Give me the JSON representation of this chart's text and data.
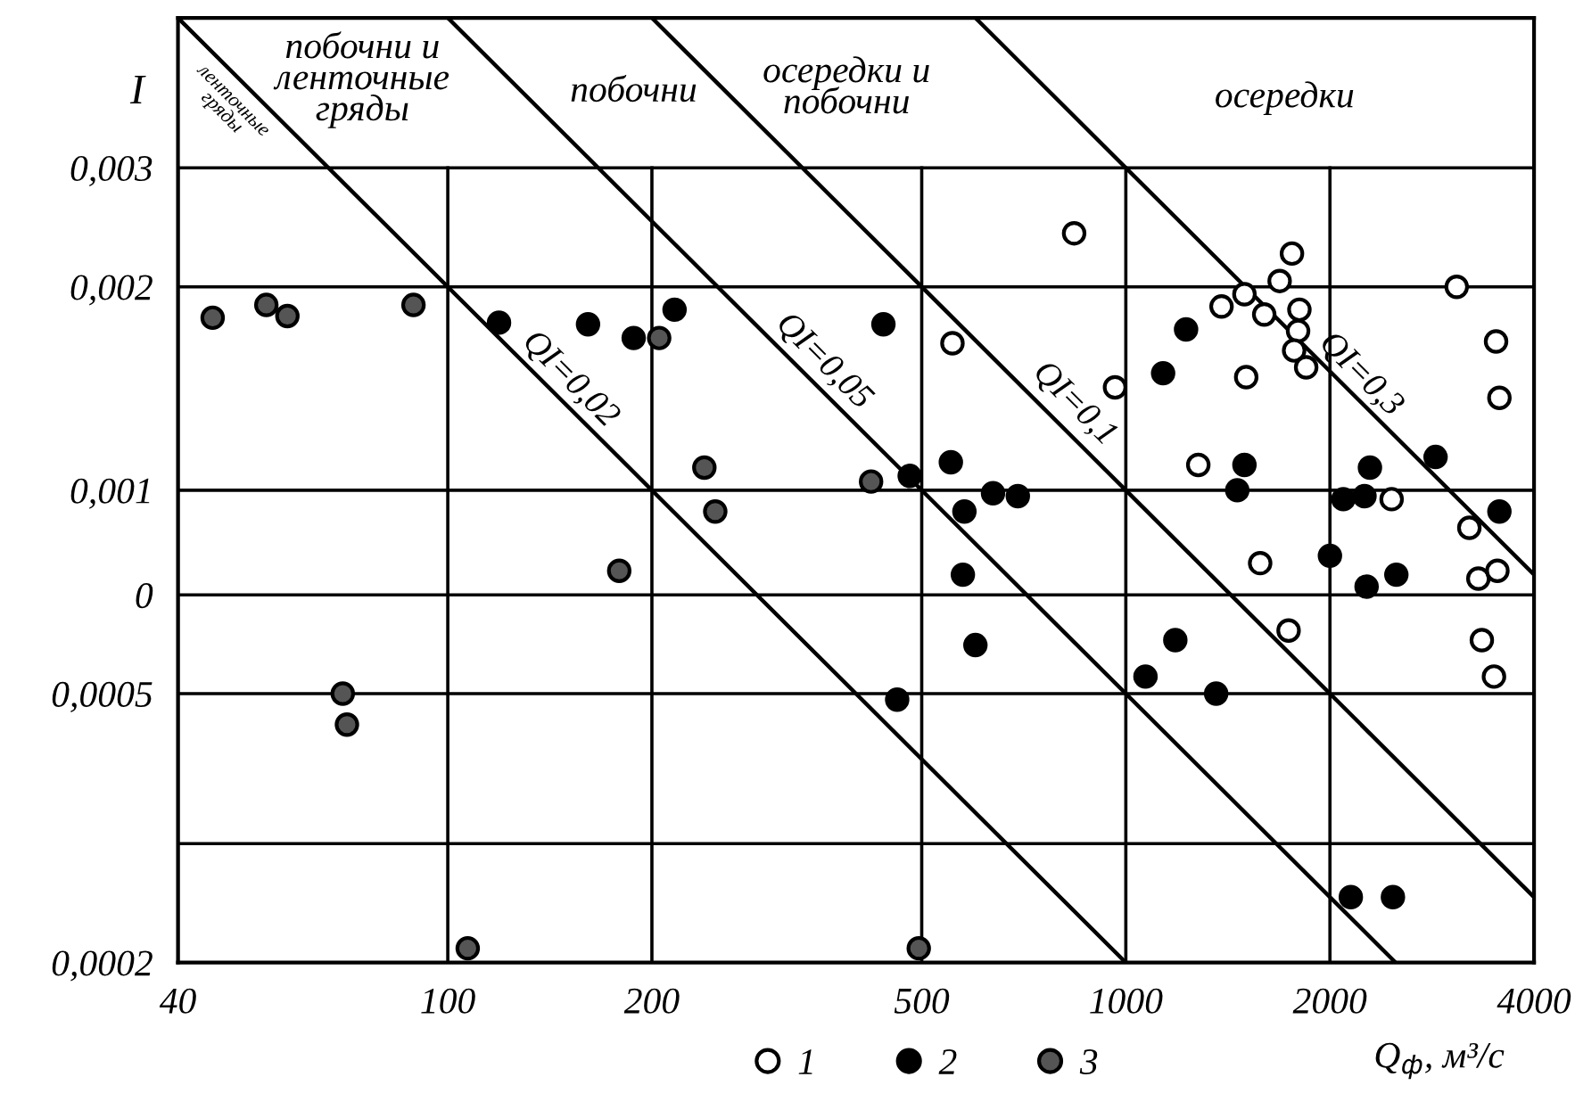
{
  "chart_data": {
    "type": "scatter",
    "xlabel": "Q$_{ф}$, м³/с",
    "ylabel": "I",
    "log": "xy",
    "grid": true,
    "legend": "bottom",
    "marker": "circle",
    "xlim": [
      40,
      4000
    ],
    "xticks": [
      40,
      100,
      200,
      500,
      1000,
      2000,
      4000
    ],
    "ylim": [
      0.0002,
      0.005
    ],
    "yticks": [
      {
        "value": 0.0002,
        "label": "0,0002"
      },
      {
        "value": 0.0003,
        "label": null
      },
      {
        "value": 0.0005,
        "label": "0,0005"
      },
      {
        "value": 0.0007,
        "label": "0"
      },
      {
        "value": 0.001,
        "label": "0,001"
      },
      {
        "value": 0.002,
        "label": "0,002"
      },
      {
        "value": 0.003,
        "label": "0,003"
      }
    ],
    "series": [
      {
        "name": "1",
        "color": "#ffffff",
        "x": [
          839,
          555,
          964,
          1758,
          1686,
          1496,
          1384,
          1600,
          1803,
          1795,
          1771,
          1845,
          1505,
          3076,
          3516,
          3556,
          1279,
          2466,
          3211,
          1578,
          3311,
          3532,
          1738,
          3350,
          3491
        ],
        "values": [
          0.0024,
          0.00165,
          0.00142,
          0.00224,
          0.00204,
          0.00195,
          0.00187,
          0.00182,
          0.00185,
          0.00172,
          0.00161,
          0.00152,
          0.00147,
          0.002,
          0.00166,
          0.00137,
          0.00109,
          0.00097,
          0.00088,
          0.00078,
          0.00074,
          0.00076,
          0.00062,
          0.0006,
          0.00053
        ]
      },
      {
        "name": "2",
        "color": "#000000",
        "x": [
          119,
          161,
          188,
          216,
          439,
          480,
          552,
          578,
          637,
          693,
          1227,
          1135,
          1496,
          1460,
          2863,
          2291,
          2249,
          2093,
          3556,
          2000,
          575,
          600,
          460,
          1183,
          1069,
          1359,
          2265,
          2506,
          2147,
          2477
        ],
        "values": [
          0.00177,
          0.00176,
          0.00168,
          0.00185,
          0.00176,
          0.00105,
          0.0011,
          0.00093,
          0.00099,
          0.00098,
          0.00173,
          0.00149,
          0.00109,
          0.001,
          0.00112,
          0.00108,
          0.00098,
          0.00097,
          0.00093,
          0.0008,
          0.00075,
          0.00059,
          0.00049,
          0.0006,
          0.00053,
          0.0005,
          0.00072,
          0.00075,
          0.00025,
          0.00025
        ]
      },
      {
        "name": "3",
        "color": "#555555",
        "x": [
          45,
          54,
          58,
          89,
          205,
          239,
          248,
          179,
          421,
          70,
          71,
          107,
          495
        ],
        "values": [
          0.0018,
          0.00188,
          0.00181,
          0.00188,
          0.00168,
          0.00108,
          0.00093,
          0.00076,
          0.00103,
          0.0005,
          0.00045,
          0.00021,
          0.00021
        ]
      },
      {
        "type": "line",
        "marker": "none",
        "color": "#000000",
        "x": [
          40,
          1000
        ],
        "values": [
          0.005,
          0.0002
        ]
      },
      {
        "type": "line",
        "marker": "none",
        "color": "#000000",
        "x": [
          100,
          2500
        ],
        "values": [
          0.005,
          0.0002
        ]
      },
      {
        "type": "line",
        "marker": "none",
        "color": "#000000",
        "x": [
          200,
          4000
        ],
        "values": [
          0.005,
          0.00025
        ]
      },
      {
        "type": "line",
        "marker": "none",
        "color": "#000000",
        "x": [
          600,
          4000
        ],
        "values": [
          0.005,
          0.00075
        ]
      }
    ],
    "annotations": [
      "QI=0,02",
      "QI=0,05",
      "QI=0,1",
      "QI=0,3",
      "ленточные\nгряды",
      "побочни и\nленточные\nгряды",
      "побочни",
      "осередки и\nпобочни",
      "осередки"
    ]
  }
}
